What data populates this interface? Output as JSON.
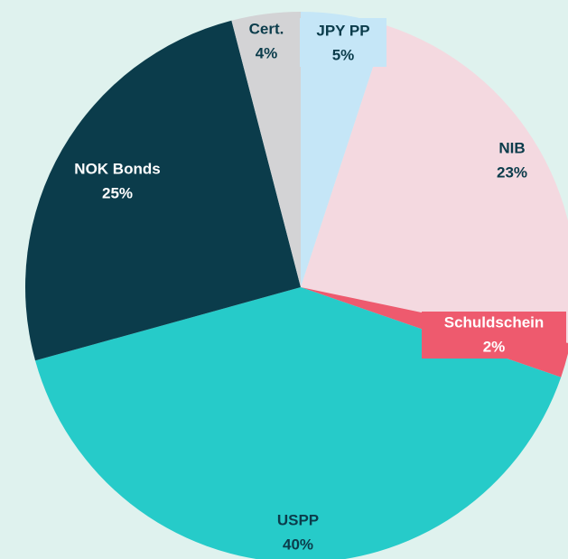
{
  "chart_data": {
    "type": "pie",
    "categories": [
      "JPY PP",
      "NIB",
      "Schuldschein",
      "USPP",
      "NOK Bonds",
      "Cert."
    ],
    "values": [
      5,
      23,
      2,
      40,
      25,
      4
    ],
    "value_labels": [
      "5%",
      "23%",
      "2%",
      "40%",
      "25%",
      "4%"
    ],
    "colors": [
      "#c5e6f7",
      "#f4d9e0",
      "#ee5a6e",
      "#26cbc9",
      "#0b3c4b",
      "#d3d3d5"
    ]
  }
}
